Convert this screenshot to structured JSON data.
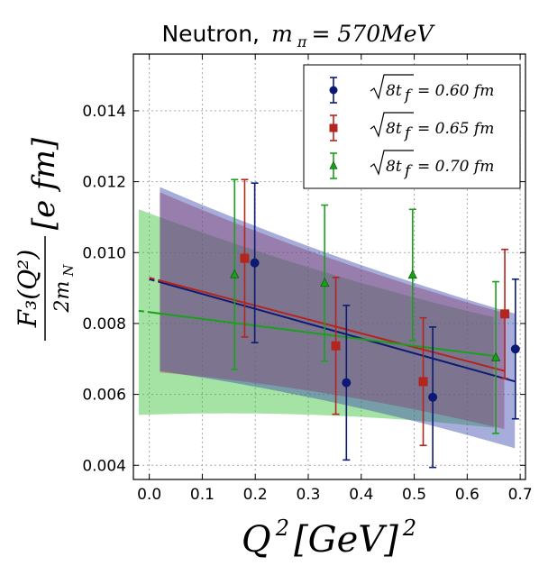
{
  "chart_data": {
    "type": "scatter",
    "title_prefix": "Neutron,",
    "title_math": "m",
    "title_math_sub": "π",
    "title_math_rest": " = 570MeV",
    "xlabel": "Q²[GeV]²",
    "xlabel_parts": {
      "q": "Q",
      "sup": "2",
      "body": "[GeV]",
      "sup2": "2"
    },
    "ylabel_parts": {
      "num": "F₃(Q²)",
      "den": "2m",
      "den_sub": "N",
      "unit": "[e fm]"
    },
    "xlim": [
      -0.03,
      0.71
    ],
    "ylim": [
      0.0036,
      0.0156
    ],
    "grid": true,
    "legend_position": "top-right",
    "x_ticks": [
      0.0,
      0.1,
      0.2,
      0.3,
      0.4,
      0.5,
      0.6,
      0.7
    ],
    "x_tick_labels": [
      "0.0",
      "0.1",
      "0.2",
      "0.3",
      "0.4",
      "0.5",
      "0.6",
      "0.7"
    ],
    "y_ticks": [
      0.004,
      0.006,
      0.008,
      0.01,
      0.012,
      0.014
    ],
    "y_tick_labels": [
      "0.004",
      "0.006",
      "0.008",
      "0.010",
      "0.012",
      "0.014"
    ],
    "series": [
      {
        "name": "√8t_f = 0.60 fm",
        "legend_value": "= 0.60 fm",
        "color": "#0c1a73",
        "band_color": "#3b49b0",
        "marker": "circle",
        "points": [
          {
            "x": 0.199,
            "y": 0.00971,
            "err": 0.00225
          },
          {
            "x": 0.372,
            "y": 0.00633,
            "err": 0.00218
          },
          {
            "x": 0.535,
            "y": 0.00592,
            "err": 0.00198
          },
          {
            "x": 0.691,
            "y": 0.00728,
            "err": 0.00197
          }
        ],
        "fit": {
          "x_start": 0.0,
          "x_data_start": 0.02,
          "x_end": 0.69,
          "y0": 0.00925,
          "slope": -0.00418
        },
        "band": {
          "x_start": 0.02,
          "x_end": 0.69,
          "upper": [
            0.01185,
            0.00828
          ],
          "lower": [
            0.00666,
            0.00448
          ]
        }
      },
      {
        "name": "√8t_f = 0.65 fm",
        "legend_value": "= 0.65 fm",
        "color": "#b3251f",
        "band_color": "#c44040",
        "marker": "square",
        "points": [
          {
            "x": 0.18,
            "y": 0.00984,
            "err": 0.00222
          },
          {
            "x": 0.352,
            "y": 0.00737,
            "err": 0.00193
          },
          {
            "x": 0.517,
            "y": 0.00636,
            "err": 0.0018
          },
          {
            "x": 0.671,
            "y": 0.00827,
            "err": 0.00182
          }
        ],
        "fit": {
          "x_start": 0.0,
          "x_data_start": 0.02,
          "x_end": 0.67,
          "y0": 0.00929,
          "slope": -0.00392
        },
        "band": {
          "x_start": 0.02,
          "x_end": 0.67,
          "upper": [
            0.0117,
            0.0083
          ],
          "lower": [
            0.00662,
            0.00502
          ]
        }
      },
      {
        "name": "√8t_f = 0.70 fm",
        "legend_value": "= 0.70 fm",
        "color": "#1aa01a",
        "band_color": "#35c035",
        "marker": "triangle",
        "points": [
          {
            "x": 0.161,
            "y": 0.00938,
            "err": 0.00268
          },
          {
            "x": 0.331,
            "y": 0.00914,
            "err": 0.0022
          },
          {
            "x": 0.497,
            "y": 0.00937,
            "err": 0.00185
          },
          {
            "x": 0.654,
            "y": 0.00704,
            "err": 0.00214
          }
        ],
        "fit": {
          "x_start": -0.02,
          "x_data_start": 0.0,
          "x_end": 0.65,
          "y0": 0.00832,
          "slope": -0.0019
        },
        "band": {
          "x_start": -0.02,
          "x_end": 0.65,
          "upper": [
            0.01122,
            0.00818
          ],
          "lower": [
            0.00542,
            0.00506
          ]
        }
      }
    ]
  }
}
